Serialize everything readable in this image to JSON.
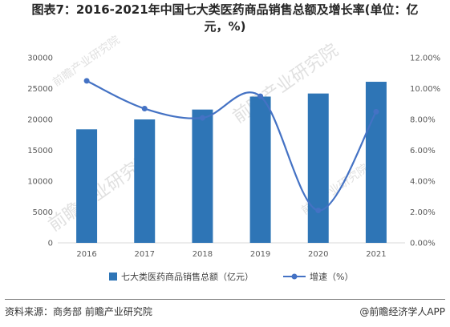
{
  "title_line1": "图表7：2016-2021年中国七大类医药商品销售总额及增长率(单位：亿",
  "title_line2": "元，%)",
  "footer": {
    "source": "资料来源：商务部 前瞻产业研究院",
    "credit": "@前瞻经济学人APP"
  },
  "watermark": {
    "text": "前瞻产业研究院"
  },
  "colors": {
    "bar": "#2e75b6",
    "line": "#4472c4",
    "axis": "#595959"
  },
  "chart_data": {
    "type": "bar",
    "categories": [
      "2016",
      "2017",
      "2018",
      "2019",
      "2020",
      "2021"
    ],
    "series": [
      {
        "name": "七大类医药商品销售总额（亿元）",
        "type": "bar",
        "axis": "left",
        "values": [
          18400,
          20000,
          21600,
          23700,
          24200,
          26100
        ]
      },
      {
        "name": "增速（%）",
        "type": "line",
        "smooth": true,
        "axis": "right",
        "values": [
          10.5,
          8.7,
          8.1,
          9.5,
          2.1,
          8.5
        ]
      }
    ],
    "y_left": {
      "ylim": [
        0,
        30000
      ],
      "ticks": [
        "0",
        "5000",
        "10000",
        "15000",
        "20000",
        "25000",
        "30000"
      ]
    },
    "y_right": {
      "ylim": [
        0,
        12
      ],
      "ticks": [
        "0.00%",
        "2.00%",
        "4.00%",
        "6.00%",
        "8.00%",
        "10.00%",
        "12.00%"
      ]
    },
    "grid": false,
    "legend_position": "bottom"
  }
}
